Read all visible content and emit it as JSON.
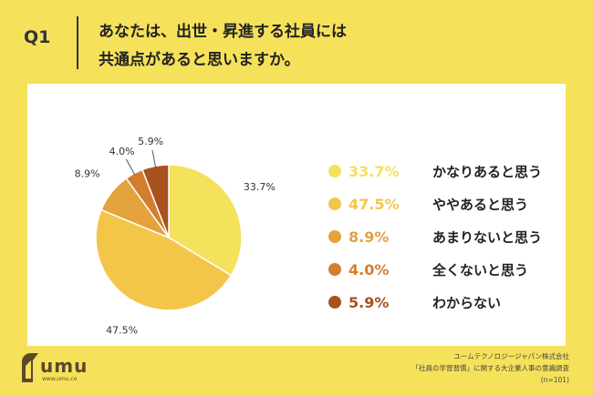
{
  "question": {
    "number": "Q1",
    "text_line1": "あなたは、出世・昇進する社員には",
    "text_line2": "共通点があると思いますか。"
  },
  "chart_data": {
    "type": "pie",
    "start_angle_deg": 0,
    "direction": "clockwise",
    "slices": [
      {
        "label": "かなりあると思う",
        "value": 33.7,
        "pct_label": "33.7%",
        "color": "#F4E15C"
      },
      {
        "label": "ややあると思う",
        "value": 47.5,
        "pct_label": "47.5%",
        "color": "#F3C64A"
      },
      {
        "label": "あまりないと思う",
        "value": 8.9,
        "pct_label": "8.9%",
        "color": "#E4A23C"
      },
      {
        "label": "全くないと思う",
        "value": 4.0,
        "pct_label": "4.0%",
        "color": "#D27E2E"
      },
      {
        "label": "わからない",
        "value": 5.9,
        "pct_label": "5.9%",
        "color": "#A8521E"
      }
    ]
  },
  "logo": {
    "word": "umu",
    "url": "www.umu.co"
  },
  "credit": {
    "line1": "ユームテクノロジージャパン株式会社",
    "line2": "「社員の学習習慣」に関する大企業人事の意識調査",
    "line3": "(n=101)"
  }
}
